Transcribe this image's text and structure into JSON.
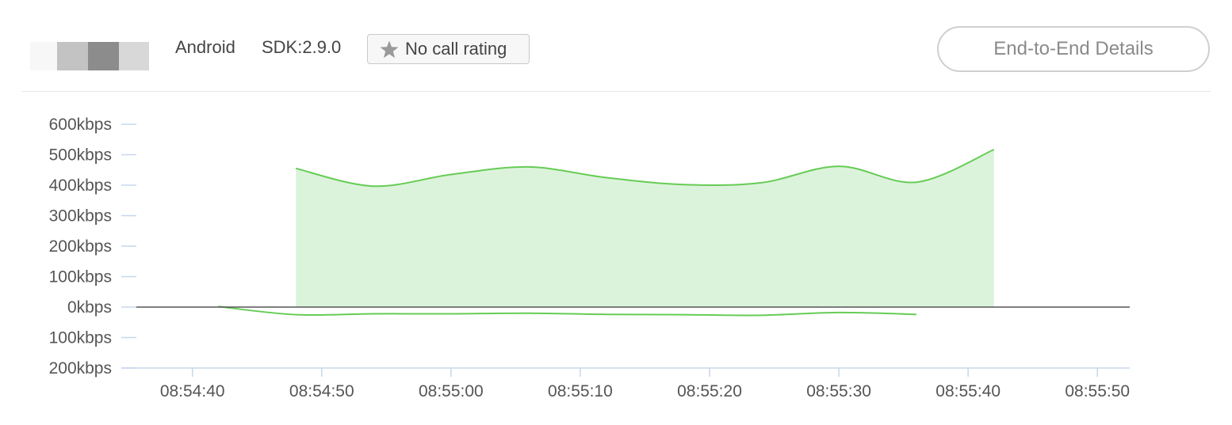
{
  "header": {
    "platform": "Android",
    "sdk": "SDK:2.9.0",
    "rating_label": "No call rating",
    "rating_icon": "star-icon",
    "details_button": "End-to-End Details"
  },
  "colors": {
    "line": "#66cc55",
    "fill": "#dcf3db",
    "axis": "#c8d6ec",
    "zero_line": "#555555"
  },
  "chart_data": {
    "type": "area",
    "title": "",
    "xlabel": "",
    "ylabel": "",
    "y_min": -200,
    "y_max": 600,
    "y_ticks": [
      600,
      500,
      400,
      300,
      200,
      100,
      0,
      -100,
      -200
    ],
    "y_tick_labels": [
      "600kbps",
      "500kbps",
      "400kbps",
      "300kbps",
      "200kbps",
      "100kbps",
      "0kbps",
      "100kbps",
      "200kbps"
    ],
    "x_range": [
      "08:54:34.5",
      "08:55:52.5"
    ],
    "x_ticks": [
      "08:54:40",
      "08:54:50",
      "08:55:00",
      "08:55:10",
      "08:55:20",
      "08:55:30",
      "08:55:40",
      "08:55:50"
    ],
    "grid": false,
    "series": [
      {
        "x": [
          "08:54:48",
          "08:54:54",
          "08:55:00",
          "08:55:06",
          "08:55:12",
          "08:55:18",
          "08:55:24",
          "08:55:30",
          "08:55:36",
          "08:55:42"
        ],
        "values": [
          455,
          397,
          435,
          460,
          425,
          402,
          408,
          462,
          410,
          517
        ],
        "style": "filled-area"
      },
      {
        "x": [
          "08:54:42",
          "08:54:48",
          "08:54:54",
          "08:55:00",
          "08:55:06",
          "08:55:12",
          "08:55:18",
          "08:55:24",
          "08:55:30",
          "08:55:36"
        ],
        "values": [
          2,
          -25,
          -22,
          -22,
          -20,
          -24,
          -25,
          -27,
          -18,
          -24
        ],
        "style": "line"
      }
    ]
  }
}
